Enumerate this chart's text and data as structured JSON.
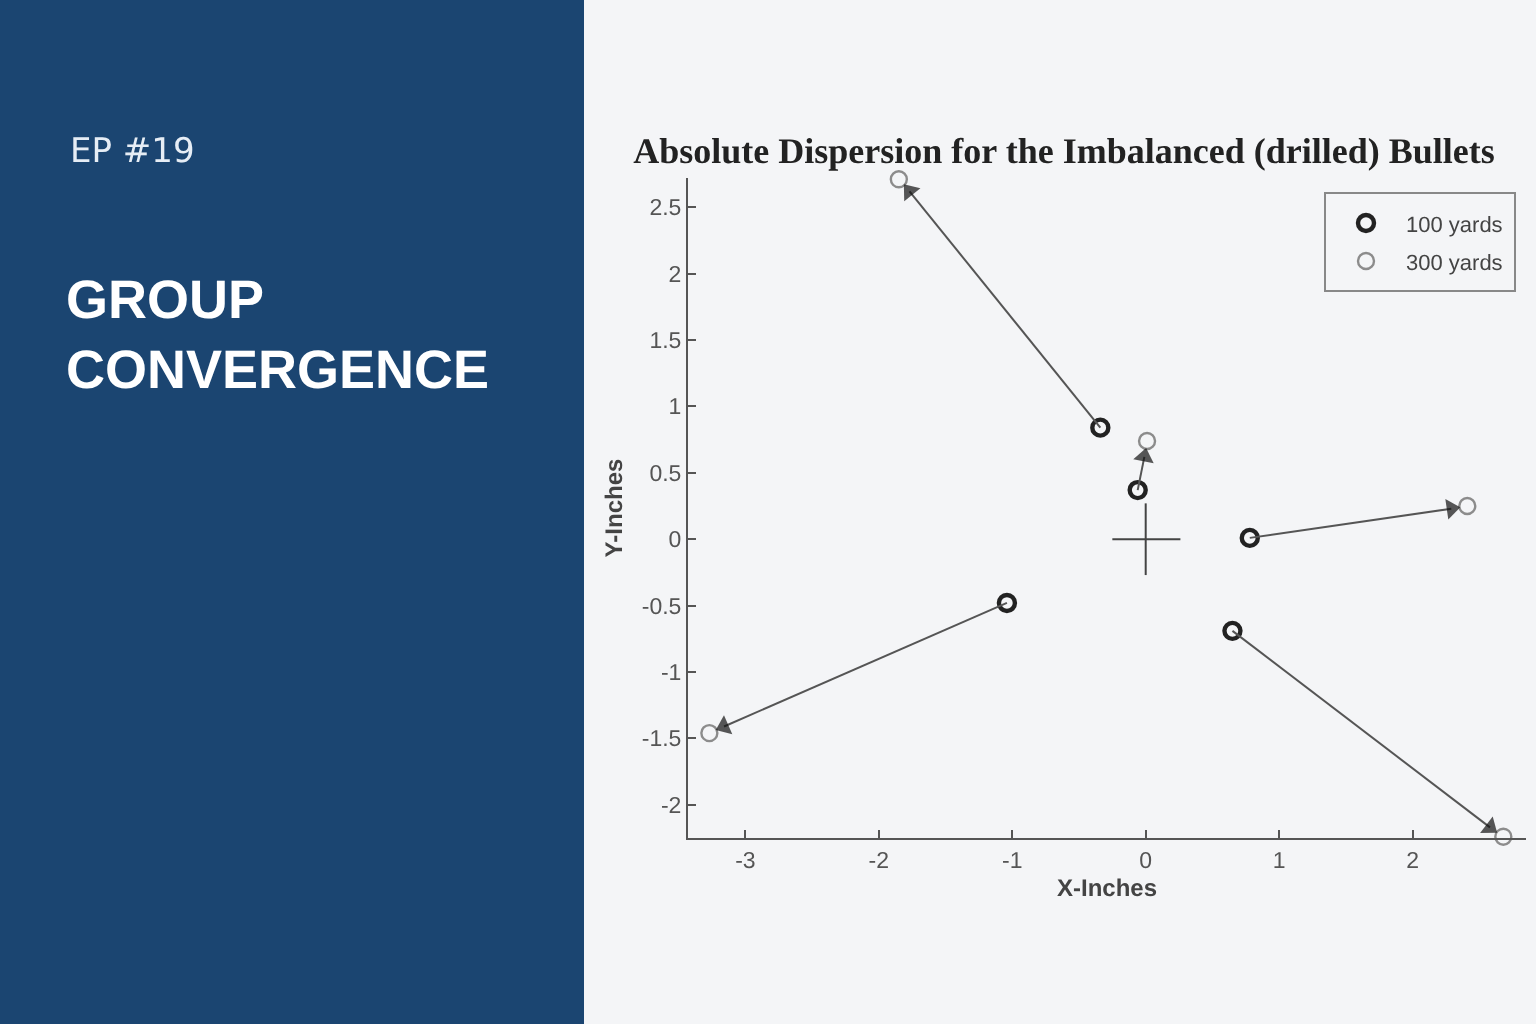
{
  "chart_data": {
    "type": "scatter",
    "title": "Absolute Dispersion for the Imbalanced (drilled) Bullets",
    "xlabel": "X-Inches",
    "ylabel": "Y-Inches",
    "annotations": [
      "EP #19",
      "GROUP\nCONVERGENCE"
    ],
    "series": [
      {
        "name": "100 yards",
        "color": "#222222",
        "x": [
          -0.34,
          -0.06,
          0.78,
          -1.04,
          0.65
        ],
        "values": [
          0.84,
          0.37,
          0.01,
          -0.48,
          -0.69
        ]
      },
      {
        "name": "300 yards",
        "color": "#8c8c8c",
        "x": [
          -1.85,
          0.01,
          2.41,
          -3.27,
          2.68
        ],
        "values": [
          2.71,
          0.74,
          0.25,
          -1.46,
          -2.24
        ]
      },
      {
        "type": "line",
        "color": "#555555",
        "marker": "triangle",
        "line_style": "solid",
        "x": [
          -0.34,
          -1.77,
          null,
          -0.06,
          -0.01,
          null,
          0.78,
          2.29,
          null,
          -1.04,
          -3.16,
          null,
          0.65,
          2.58
        ],
        "values": [
          0.84,
          2.62,
          null,
          0.37,
          0.62,
          null,
          0.01,
          0.23,
          null,
          -0.48,
          -1.41,
          null,
          -0.69,
          -2.17
        ]
      },
      {
        "type": "line",
        "color": "#444444",
        "marker": "none",
        "line_style": "solid",
        "x": [
          -0.25,
          0.26,
          null,
          0,
          0
        ],
        "values": [
          0,
          0,
          null,
          0.27,
          -0.27
        ]
      }
    ],
    "xlim": [
      -3.43,
      2.85
    ],
    "ylim": [
      -2.25,
      2.72
    ],
    "xticks": [
      -3,
      -2,
      -1,
      0,
      1,
      2
    ],
    "yticks": [
      -2,
      -1.5,
      -1,
      -0.5,
      0,
      0.5,
      1,
      1.5,
      2,
      2.5
    ],
    "legend": "top right",
    "marker": "circle"
  }
}
